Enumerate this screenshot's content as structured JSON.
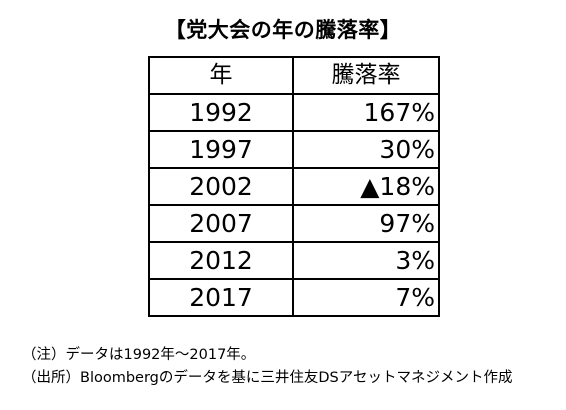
{
  "title": "【党大会の年の騰落率】",
  "chart_data": {
    "type": "table",
    "columns": [
      "年",
      "騰落率"
    ],
    "rows": [
      {
        "year": "1992",
        "change": "167%"
      },
      {
        "year": "1997",
        "change": "30%"
      },
      {
        "year": "2002",
        "change": "▲18%"
      },
      {
        "year": "2007",
        "change": "97%"
      },
      {
        "year": "2012",
        "change": "3%"
      },
      {
        "year": "2017",
        "change": "7%"
      }
    ]
  },
  "notes": [
    "（注）データは1992年～2017年。",
    "（出所）Bloombergのデータを基に三井住友DSアセットマネジメント作成"
  ]
}
